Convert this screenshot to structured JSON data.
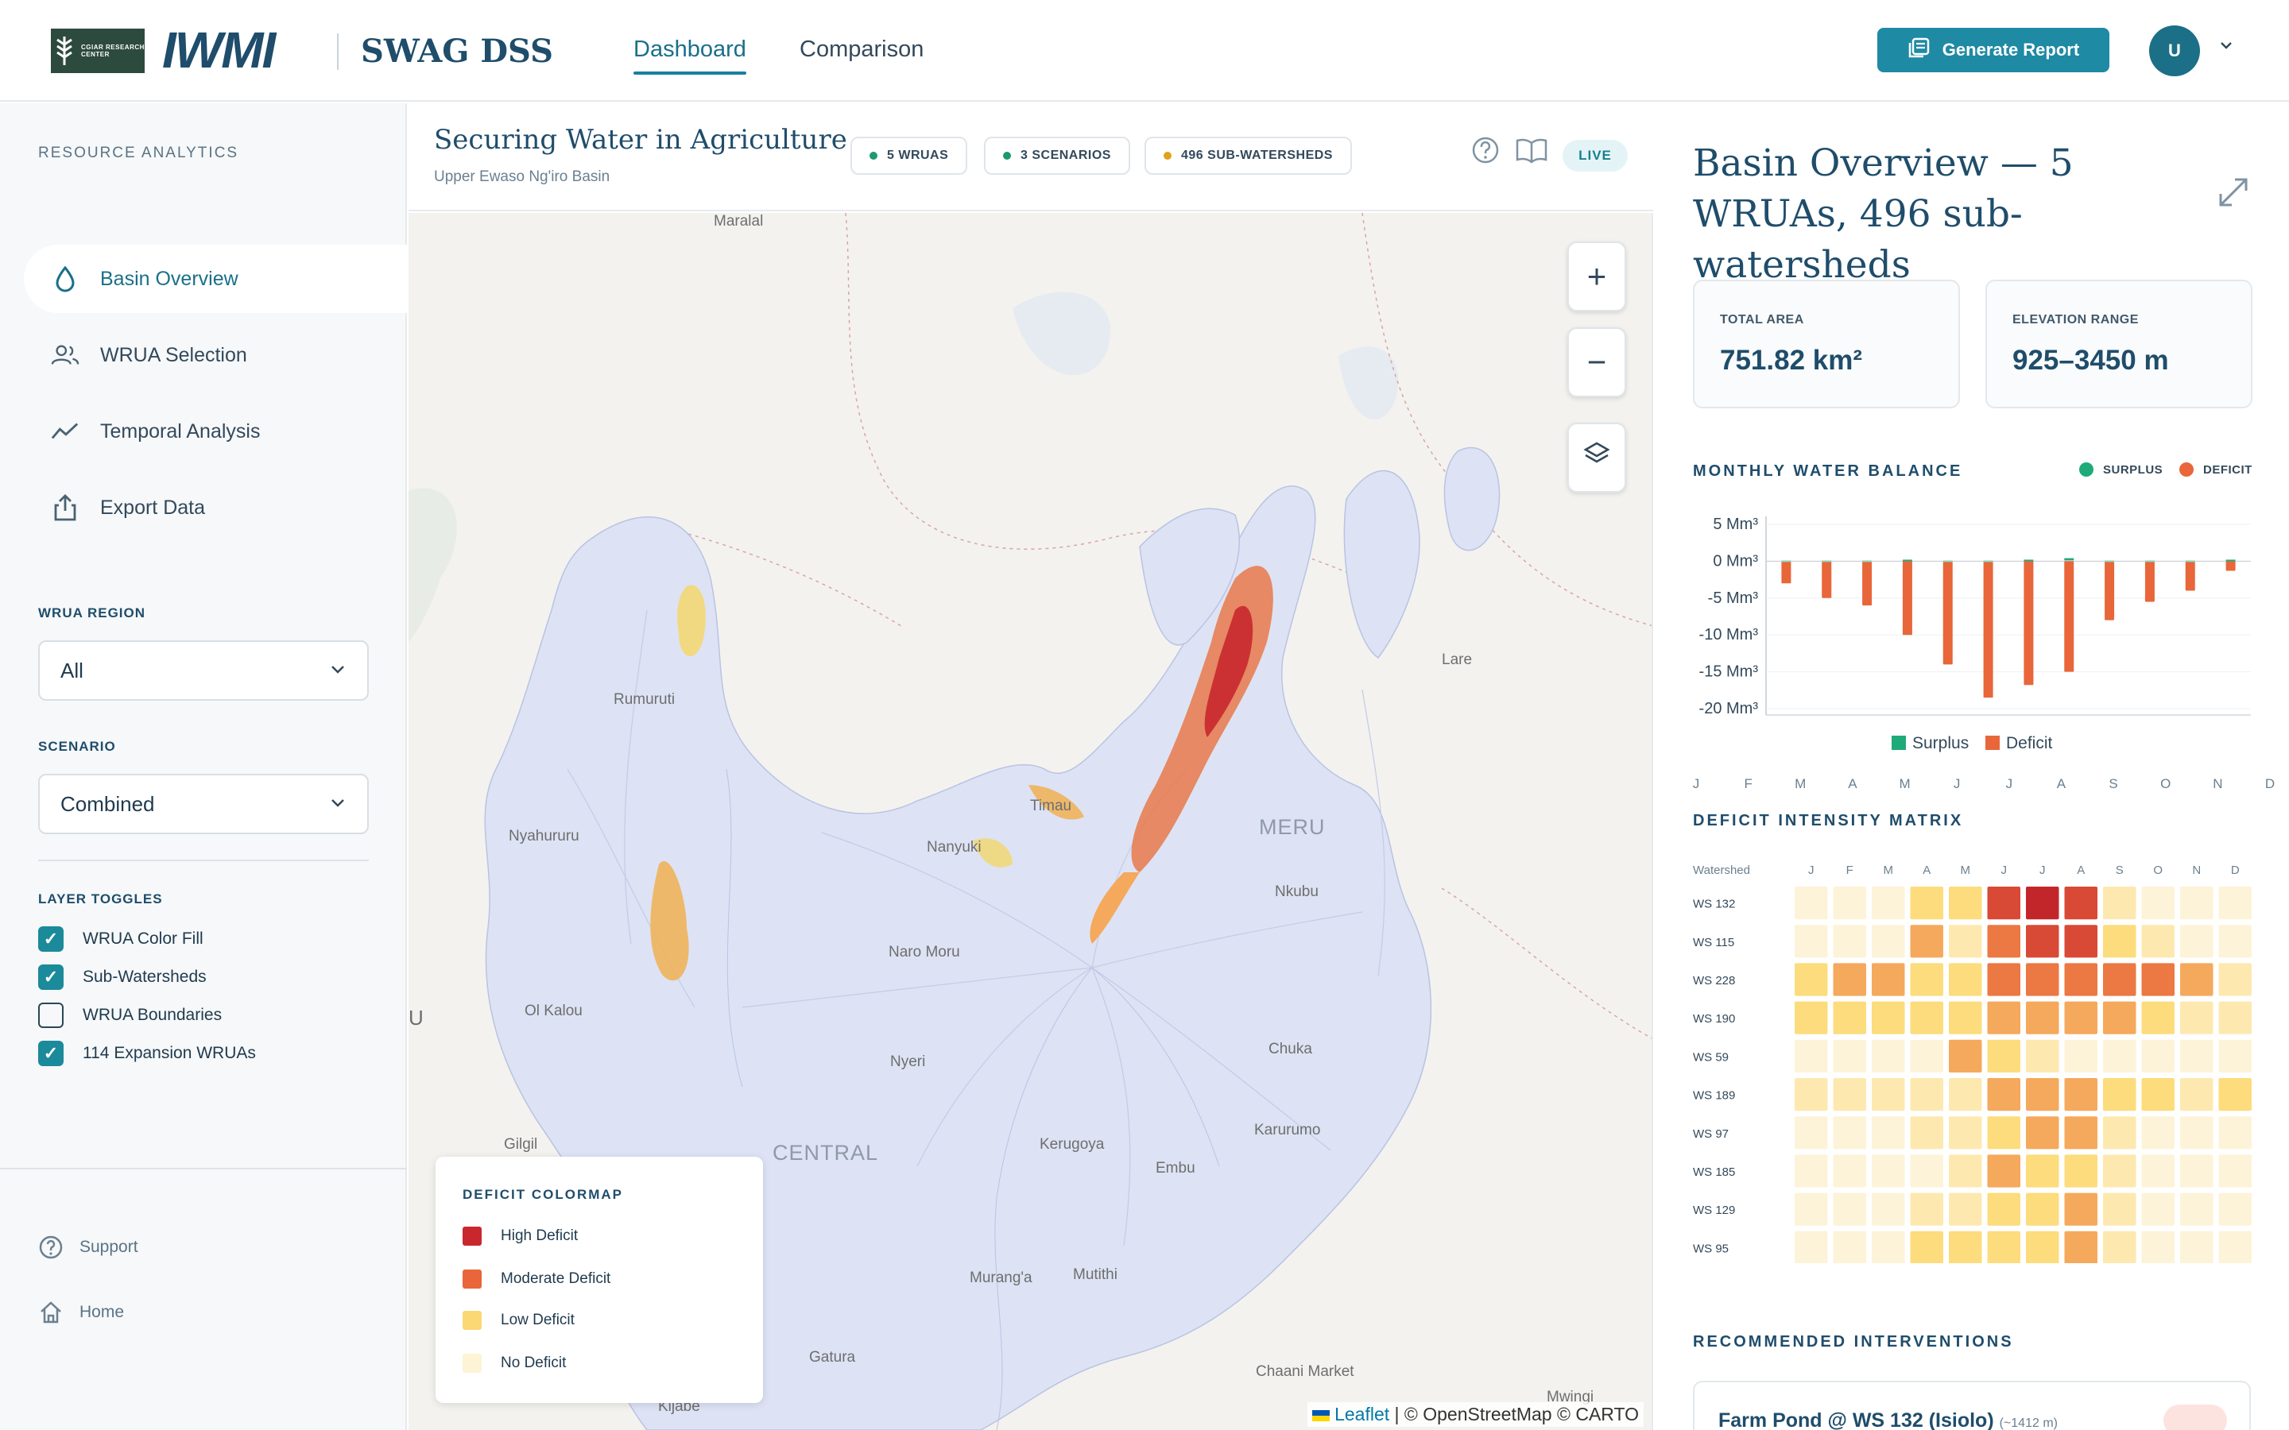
{
  "header": {
    "cgiar_logo_text": "CGIAR RESEARCH CENTER",
    "iwmi_logo": "IWMI",
    "app_name": "SWAG DSS",
    "tabs": [
      {
        "label": "Dashboard",
        "active": true
      },
      {
        "label": "Comparison",
        "active": false
      }
    ],
    "generate_report_label": "Generate Report",
    "avatar_initial": "U"
  },
  "sidebar": {
    "section_title": "RESOURCE ANALYTICS",
    "items": [
      {
        "label": "Basin Overview",
        "icon": "droplet-icon",
        "active": true
      },
      {
        "label": "WRUA Selection",
        "icon": "users-icon",
        "active": false
      },
      {
        "label": "Temporal Analysis",
        "icon": "trend-line-icon",
        "active": false
      },
      {
        "label": "Export Data",
        "icon": "export-icon",
        "active": false
      }
    ],
    "wrua_region": {
      "label": "WRUA REGION",
      "value": "All"
    },
    "scenario": {
      "label": "SCENARIO",
      "value": "Combined"
    },
    "layer_toggles": {
      "label": "LAYER TOGGLES",
      "items": [
        {
          "label": "WRUA Color Fill",
          "checked": true
        },
        {
          "label": "Sub-Watersheds",
          "checked": true
        },
        {
          "label": "WRUA Boundaries",
          "checked": false
        },
        {
          "label": "114 Expansion WRUAs",
          "checked": true
        }
      ]
    },
    "footer": [
      {
        "label": "Support",
        "icon": "help-circle-icon"
      },
      {
        "label": "Home",
        "icon": "home-icon"
      }
    ]
  },
  "map": {
    "title": "Securing Water in Agriculture",
    "subtitle": "Upper Ewaso Ng'iro Basin",
    "chips": [
      {
        "label": "5 WRUAS",
        "color": "#1b9a6e"
      },
      {
        "label": "3 SCENARIOS",
        "color": "#1b9a6e"
      },
      {
        "label": "496 SUB-WATERSHEDS",
        "color": "#e0a21b"
      }
    ],
    "live_label": "LIVE",
    "zoom_in": "+",
    "zoom_out": "−",
    "place_labels": [
      "Maralal",
      "Rumuruti",
      "Nyahururu",
      "Ol Kalou",
      "Gilgil",
      "CENTRAL",
      "Timau",
      "Nanyuki",
      "Naro Moru",
      "MERU",
      "Nkubu",
      "Chuka",
      "Nyeri",
      "Kerugoya",
      "Embu",
      "Karurumo",
      "Murang'a",
      "Mutithi",
      "Gatura",
      "Kijabe",
      "Chaani Market",
      "Mwingi",
      "Lare",
      "U"
    ],
    "legend": {
      "title": "DEFICIT COLORMAP",
      "items": [
        {
          "label": "High Deficit",
          "color": "#c8282d"
        },
        {
          "label": "Moderate Deficit",
          "color": "#e8663a"
        },
        {
          "label": "Low Deficit",
          "color": "#fbd874"
        },
        {
          "label": "No Deficit",
          "color": "#fdf3d5"
        }
      ]
    },
    "attribution": {
      "leaflet": "Leaflet",
      "rest": " | © OpenStreetMap © CARTO"
    }
  },
  "panel": {
    "title": "Basin Overview — 5 WRUAs, 496 sub-watersheds",
    "stats": [
      {
        "label": "TOTAL AREA",
        "value": "751.82 km²"
      },
      {
        "label": "ELEVATION RANGE",
        "value": "925–3450 m"
      }
    ],
    "balance_title": "MONTHLY WATER BALANCE",
    "legend_top": [
      {
        "label": "SURPLUS",
        "color": "#1faa7a"
      },
      {
        "label": "DEFICIT",
        "color": "#e8663a"
      }
    ],
    "legend_bottom": [
      {
        "label": "Surplus",
        "color": "#1faa7a"
      },
      {
        "label": "Deficit",
        "color": "#e8663a"
      }
    ],
    "matrix_title": "DEFICIT INTENSITY MATRIX",
    "matrix_corner": "Watershed",
    "interventions_title": "RECOMMENDED INTERVENTIONS",
    "intervention_card": {
      "title": "Farm Pond @ WS 132 (Isiolo)",
      "note": "(~1412 m)"
    }
  },
  "chart_data": [
    {
      "type": "bar",
      "title": "MONTHLY WATER BALANCE",
      "categories": [
        "J",
        "F",
        "M",
        "A",
        "M",
        "J",
        "J",
        "A",
        "S",
        "O",
        "N",
        "D"
      ],
      "ytick_labels": [
        "5 Mm³",
        "0 Mm³",
        "-5 Mm³",
        "-10 Mm³",
        "-15 Mm³",
        "-20 Mm³"
      ],
      "yticks": [
        5,
        0,
        -5,
        -10,
        -15,
        -20
      ],
      "ylim": [
        -20,
        5
      ],
      "series": [
        {
          "name": "Surplus",
          "values": [
            0,
            0,
            0,
            0.1,
            0,
            0,
            0.1,
            0.3,
            0,
            0,
            0,
            0.1
          ]
        },
        {
          "name": "Deficit",
          "values": [
            -3,
            -5,
            -6,
            -10,
            -14,
            -18.5,
            -16.8,
            -15,
            -8,
            -5.5,
            -4,
            -1.3
          ]
        }
      ]
    },
    {
      "type": "heatmap",
      "title": "DEFICIT INTENSITY MATRIX",
      "columns": [
        "J",
        "F",
        "M",
        "A",
        "M",
        "J",
        "J",
        "A",
        "S",
        "O",
        "N",
        "D"
      ],
      "rows": [
        "WS 132",
        "WS 115",
        "WS 228",
        "WS 190",
        "WS 59",
        "WS 189",
        "WS 97",
        "WS 185",
        "WS 129",
        "WS 95"
      ],
      "levels_note": "0=no, 1=very low, 2=low, 3=mid, 4=moderate, 5=high-moderate, 6=high, 7=highest",
      "values": [
        [
          1,
          1,
          1,
          3,
          3,
          6,
          7,
          6,
          2,
          1,
          1,
          1
        ],
        [
          1,
          1,
          1,
          4,
          2,
          5,
          6,
          6,
          3,
          2,
          1,
          1
        ],
        [
          3,
          4,
          4,
          3,
          3,
          5,
          5,
          5,
          5,
          5,
          4,
          2
        ],
        [
          3,
          3,
          3,
          3,
          3,
          4,
          4,
          4,
          4,
          3,
          2,
          2
        ],
        [
          1,
          1,
          1,
          1,
          4,
          3,
          2,
          1,
          1,
          1,
          1,
          1
        ],
        [
          2,
          2,
          2,
          2,
          2,
          4,
          4,
          4,
          3,
          3,
          2,
          3
        ],
        [
          1,
          1,
          1,
          2,
          2,
          3,
          4,
          4,
          2,
          1,
          1,
          1
        ],
        [
          1,
          1,
          1,
          1,
          2,
          4,
          3,
          3,
          2,
          1,
          1,
          1
        ],
        [
          1,
          1,
          1,
          2,
          2,
          3,
          3,
          4,
          2,
          1,
          1,
          1
        ],
        [
          1,
          1,
          1,
          3,
          3,
          3,
          3,
          4,
          2,
          1,
          1,
          1
        ]
      ],
      "palette": [
        "#ffffff",
        "#fdf3d8",
        "#fde9b0",
        "#fcdc7c",
        "#f5a95c",
        "#ec7843",
        "#d84a36",
        "#c3262a"
      ]
    }
  ]
}
